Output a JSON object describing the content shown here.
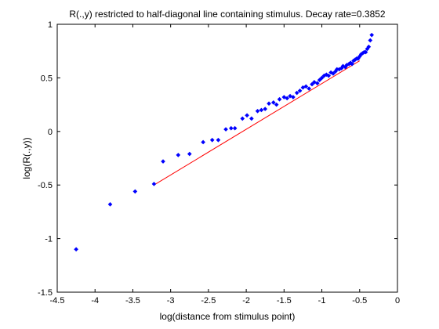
{
  "chart_data": {
    "type": "scatter",
    "title": "R(.,y) restricted to half-diagonal line containing stimulus.  Decay rate=0.3852",
    "xlabel": "log(distance from stimulus point)",
    "ylabel": "log(R(.,y))",
    "xlim": [
      -4.5,
      0
    ],
    "ylim": [
      -1.5,
      1
    ],
    "xticks": [
      -4.5,
      -4,
      -3.5,
      -3,
      -2.5,
      -2,
      -1.5,
      -1,
      -0.5,
      0
    ],
    "yticks": [
      -1.5,
      -1,
      -0.5,
      0,
      0.5,
      1
    ],
    "xtick_labels": [
      "-4.5",
      "-4",
      "-3.5",
      "-3",
      "-2.5",
      "-2",
      "-1.5",
      "-1",
      "-0.5",
      "0"
    ],
    "ytick_labels": [
      "-1.5",
      "-1",
      "-0.5",
      "0",
      "0.5",
      "1"
    ],
    "grid": false,
    "colors": {
      "points": "#0000ff",
      "fit": "#ff0000",
      "axes": "#000000"
    },
    "points": {
      "x": [
        -4.25,
        -3.8,
        -3.47,
        -3.22,
        -3.1,
        -2.9,
        -2.75,
        -2.57,
        -2.45,
        -2.37,
        -2.27,
        -2.2,
        -2.15,
        -2.05,
        -1.99,
        -1.93,
        -1.85,
        -1.8,
        -1.75,
        -1.7,
        -1.64,
        -1.6,
        -1.56,
        -1.5,
        -1.46,
        -1.42,
        -1.38,
        -1.33,
        -1.29,
        -1.25,
        -1.21,
        -1.17,
        -1.13,
        -1.1,
        -1.06,
        -1.03,
        -1.0,
        -0.97,
        -0.94,
        -0.91,
        -0.88,
        -0.85,
        -0.82,
        -0.8,
        -0.77,
        -0.74,
        -0.72,
        -0.69,
        -0.67,
        -0.64,
        -0.62,
        -0.6,
        -0.58,
        -0.56,
        -0.54,
        -0.52,
        -0.5,
        -0.48,
        -0.46,
        -0.44,
        -0.42,
        -0.4,
        -0.38,
        -0.36,
        -0.34
      ],
      "y": [
        -1.1,
        -0.68,
        -0.56,
        -0.49,
        -0.28,
        -0.22,
        -0.21,
        -0.1,
        -0.08,
        -0.08,
        0.02,
        0.03,
        0.03,
        0.12,
        0.15,
        0.12,
        0.19,
        0.2,
        0.21,
        0.26,
        0.27,
        0.25,
        0.3,
        0.32,
        0.31,
        0.33,
        0.32,
        0.36,
        0.38,
        0.41,
        0.42,
        0.4,
        0.44,
        0.46,
        0.45,
        0.48,
        0.5,
        0.52,
        0.53,
        0.52,
        0.55,
        0.54,
        0.56,
        0.58,
        0.58,
        0.59,
        0.61,
        0.6,
        0.62,
        0.63,
        0.64,
        0.63,
        0.66,
        0.67,
        0.68,
        0.68,
        0.7,
        0.72,
        0.73,
        0.74,
        0.74,
        0.77,
        0.79,
        0.85,
        0.9
      ]
    },
    "fit_line": {
      "x": [
        -3.22,
        -0.5
      ],
      "y": [
        -0.5,
        0.66
      ]
    }
  }
}
